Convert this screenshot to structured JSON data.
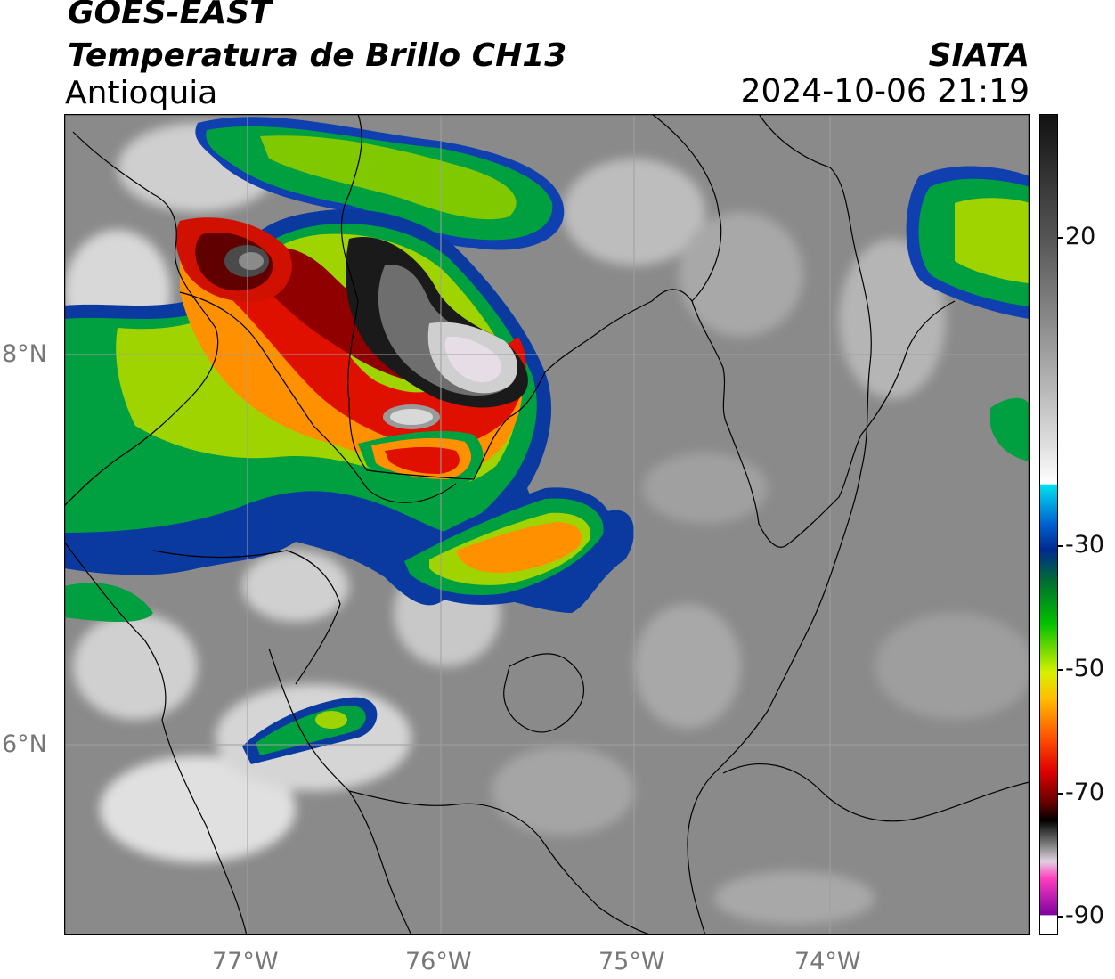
{
  "header": {
    "satellite": "GOES-EAST",
    "product": "Temperatura de Brillo CH13",
    "region": "Antioquia",
    "organization": "SIATA",
    "timestamp": "2024-10-06 21:19"
  },
  "map": {
    "lon_labels": [
      "77°W",
      "76°W",
      "75°W",
      "74°W"
    ],
    "lat_labels": [
      "8°N",
      "6°N"
    ],
    "lon_range": [
      -77.95,
      -72.95
    ],
    "lat_range": [
      5.05,
      9.25
    ],
    "colors": {
      "land_gray": "#8a8a8a",
      "grid": "#a0a0a0",
      "border": "#000000"
    }
  },
  "colorbar": {
    "ticks": [
      "20",
      "-30",
      "-50",
      "-70",
      "-90"
    ],
    "tick_values": [
      20,
      -30,
      -50,
      -70,
      -90
    ],
    "range": [
      -93,
      40
    ]
  }
}
